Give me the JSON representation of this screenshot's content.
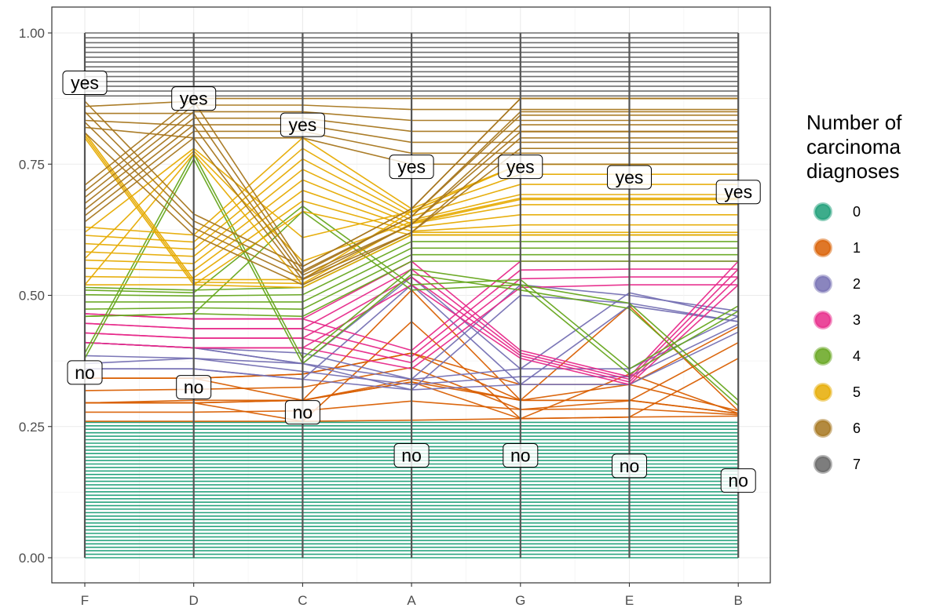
{
  "chart_data": {
    "type": "parallel-coordinates",
    "xlabel": "",
    "ylabel": "",
    "ylim": [
      0,
      1
    ],
    "grid": true,
    "legend_position": "right",
    "axes": [
      "F",
      "D",
      "C",
      "A",
      "G",
      "E",
      "B"
    ],
    "y_ticks": [
      "0.00",
      "0.25",
      "0.50",
      "0.75",
      "1.00"
    ],
    "y_tick_values": [
      0,
      0.25,
      0.5,
      0.75,
      1
    ],
    "legend": {
      "title_lines": [
        "Number of",
        "carcinoma",
        "diagnoses"
      ],
      "items": [
        {
          "label": "0",
          "color": "#1B9E77"
        },
        {
          "label": "1",
          "color": "#D95F02"
        },
        {
          "label": "2",
          "color": "#7570B3"
        },
        {
          "label": "3",
          "color": "#E7298A"
        },
        {
          "label": "4",
          "color": "#66A61E"
        },
        {
          "label": "5",
          "color": "#E6AB02"
        },
        {
          "label": "6",
          "color": "#A6761D"
        },
        {
          "label": "7",
          "color": "#666666"
        }
      ]
    },
    "level_labels": [
      {
        "axis": "F",
        "label": "yes",
        "y": 0.905
      },
      {
        "axis": "F",
        "label": "no",
        "y": 0.353
      },
      {
        "axis": "D",
        "label": "yes",
        "y": 0.875
      },
      {
        "axis": "D",
        "label": "no",
        "y": 0.325
      },
      {
        "axis": "C",
        "label": "yes",
        "y": 0.825
      },
      {
        "axis": "C",
        "label": "no",
        "y": 0.277
      },
      {
        "axis": "A",
        "label": "yes",
        "y": 0.745
      },
      {
        "axis": "A",
        "label": "no",
        "y": 0.195
      },
      {
        "axis": "G",
        "label": "yes",
        "y": 0.745
      },
      {
        "axis": "G",
        "label": "no",
        "y": 0.195
      },
      {
        "axis": "E",
        "label": "yes",
        "y": 0.725
      },
      {
        "axis": "E",
        "label": "no",
        "y": 0.175
      },
      {
        "axis": "B",
        "label": "yes",
        "y": 0.697
      },
      {
        "axis": "B",
        "label": "no",
        "y": 0.147
      }
    ],
    "series": [
      {
        "name": "0",
        "count": 40,
        "profiles": [
          {
            "frac": 1.0,
            "values": [
              [
                0.0,
                0.258
              ],
              [
                0.0,
                0.258
              ],
              [
                0.0,
                0.258
              ],
              [
                0.0,
                0.258
              ],
              [
                0.0,
                0.258
              ],
              [
                0.0,
                0.258
              ],
              [
                0.0,
                0.258
              ]
            ]
          }
        ]
      },
      {
        "name": "1",
        "count": 11,
        "profiles": [
          {
            "frac": 0.3,
            "values": [
              [
                0.26,
                0.295
              ],
              [
                0.26,
                0.295
              ],
              [
                0.26,
                0.3
              ],
              [
                0.262,
                0.335
              ],
              [
                0.265,
                0.3
              ],
              [
                0.268,
                0.3
              ],
              [
                0.27,
                0.275
              ]
            ]
          },
          {
            "frac": 0.2,
            "values": [
              [
                0.295,
                0.342
              ],
              [
                0.295,
                0.342
              ],
              [
                0.3,
                0.35
              ],
              [
                0.34,
                0.39
              ],
              [
                0.3,
                0.33
              ],
              [
                0.3,
                0.33
              ],
              [
                0.275,
                0.28
              ]
            ]
          },
          {
            "frac": 0.2,
            "values": [
              [
                0.295,
                0.342
              ],
              [
                0.295,
                0.342
              ],
              [
                0.26,
                0.3
              ],
              [
                0.45,
                0.51
              ],
              [
                0.265,
                0.3
              ],
              [
                0.35,
                0.48
              ],
              [
                0.275,
                0.28
              ]
            ]
          },
          {
            "frac": 0.3,
            "values": [
              [
                0.295,
                0.342
              ],
              [
                0.3,
                0.342
              ],
              [
                0.3,
                0.35
              ],
              [
                0.335,
                0.39
              ],
              [
                0.265,
                0.3
              ],
              [
                0.268,
                0.33
              ],
              [
                0.38,
                0.44
              ]
            ]
          }
        ]
      },
      {
        "name": "2",
        "count": 7,
        "profiles": [
          {
            "frac": 0.45,
            "values": [
              [
                0.36,
                0.41
              ],
              [
                0.36,
                0.4
              ],
              [
                0.34,
                0.37
              ],
              [
                0.32,
                0.34
              ],
              [
                0.33,
                0.36
              ],
              [
                0.33,
                0.36
              ],
              [
                0.43,
                0.46
              ]
            ]
          },
          {
            "frac": 0.25,
            "values": [
              [
                0.36,
                0.41
              ],
              [
                0.36,
                0.4
              ],
              [
                0.34,
                0.37
              ],
              [
                0.52,
                0.535
              ],
              [
                0.33,
                0.36
              ],
              [
                0.48,
                0.505
              ],
              [
                0.45,
                0.46
              ]
            ]
          },
          {
            "frac": 0.3,
            "values": [
              [
                0.37,
                0.41
              ],
              [
                0.38,
                0.4
              ],
              [
                0.37,
                0.39
              ],
              [
                0.32,
                0.34
              ],
              [
                0.5,
                0.52
              ],
              [
                0.485,
                0.5
              ],
              [
                0.45,
                0.47
              ]
            ]
          }
        ]
      },
      {
        "name": "3",
        "count": 7,
        "profiles": [
          {
            "frac": 0.5,
            "values": [
              [
                0.41,
                0.465
              ],
              [
                0.4,
                0.455
              ],
              [
                0.4,
                0.455
              ],
              [
                0.36,
                0.395
              ],
              [
                0.515,
                0.565
              ],
              [
                0.52,
                0.565
              ],
              [
                0.52,
                0.565
              ]
            ]
          },
          {
            "frac": 0.5,
            "values": [
              [
                0.41,
                0.465
              ],
              [
                0.4,
                0.455
              ],
              [
                0.4,
                0.455
              ],
              [
                0.52,
                0.565
              ],
              [
                0.38,
                0.395
              ],
              [
                0.33,
                0.345
              ],
              [
                0.52,
                0.565
              ]
            ]
          }
        ]
      },
      {
        "name": "4",
        "count": 9,
        "profiles": [
          {
            "frac": 0.6,
            "values": [
              [
                0.46,
                0.515
              ],
              [
                0.465,
                0.51
              ],
              [
                0.46,
                0.515
              ],
              [
                0.565,
                0.615
              ],
              [
                0.565,
                0.615
              ],
              [
                0.565,
                0.615
              ],
              [
                0.565,
                0.615
              ]
            ]
          },
          {
            "frac": 0.15,
            "values": [
              [
                0.38,
                0.39
              ],
              [
                0.76,
                0.77
              ],
              [
                0.37,
                0.38
              ],
              [
                0.54,
                0.55
              ],
              [
                0.51,
                0.52
              ],
              [
                0.475,
                0.485
              ],
              [
                0.29,
                0.3
              ]
            ]
          },
          {
            "frac": 0.25,
            "values": [
              [
                0.46,
                0.51
              ],
              [
                0.465,
                0.505
              ],
              [
                0.66,
                0.67
              ],
              [
                0.51,
                0.52
              ],
              [
                0.52,
                0.53
              ],
              [
                0.35,
                0.36
              ],
              [
                0.47,
                0.48
              ]
            ]
          }
        ]
      },
      {
        "name": "5",
        "count": 14,
        "profiles": [
          {
            "frac": 0.6,
            "values": [
              [
                0.52,
                0.63
              ],
              [
                0.52,
                0.615
              ],
              [
                0.66,
                0.8
              ],
              [
                0.615,
                0.665
              ],
              [
                0.615,
                0.75
              ],
              [
                0.615,
                0.75
              ],
              [
                0.615,
                0.75
              ]
            ]
          },
          {
            "frac": 0.2,
            "values": [
              [
                0.52,
                0.62
              ],
              [
                0.77,
                0.78
              ],
              [
                0.52,
                0.61
              ],
              [
                0.62,
                0.66
              ],
              [
                0.62,
                0.75
              ],
              [
                0.62,
                0.75
              ],
              [
                0.62,
                0.75
              ]
            ]
          },
          {
            "frac": 0.2,
            "values": [
              [
                0.8,
                0.81
              ],
              [
                0.52,
                0.53
              ],
              [
                0.515,
                0.53
              ],
              [
                0.615,
                0.66
              ],
              [
                0.615,
                0.75
              ],
              [
                0.615,
                0.75
              ],
              [
                0.615,
                0.75
              ]
            ]
          }
        ]
      },
      {
        "name": "6",
        "count": 14,
        "profiles": [
          {
            "frac": 0.5,
            "values": [
              [
                0.64,
                0.71
              ],
              [
                0.8,
                0.875
              ],
              [
                0.8,
                0.875
              ],
              [
                0.75,
                0.875
              ],
              [
                0.75,
                0.875
              ],
              [
                0.75,
                0.875
              ],
              [
                0.75,
                0.875
              ]
            ]
          },
          {
            "frac": 0.25,
            "values": [
              [
                0.81,
                0.87
              ],
              [
                0.615,
                0.655
              ],
              [
                0.52,
                0.555
              ],
              [
                0.62,
                0.665
              ],
              [
                0.8,
                0.875
              ],
              [
                0.8,
                0.875
              ],
              [
                0.8,
                0.875
              ]
            ]
          },
          {
            "frac": 0.25,
            "values": [
              [
                0.82,
                0.86
              ],
              [
                0.8,
                0.87
              ],
              [
                0.53,
                0.555
              ],
              [
                0.62,
                0.665
              ],
              [
                0.78,
                0.875
              ],
              [
                0.78,
                0.875
              ],
              [
                0.78,
                0.875
              ]
            ]
          }
        ]
      },
      {
        "name": "7",
        "count": 14,
        "profiles": [
          {
            "frac": 1.0,
            "values": [
              [
                0.88,
                1.0
              ],
              [
                0.88,
                1.0
              ],
              [
                0.88,
                1.0
              ],
              [
                0.88,
                1.0
              ],
              [
                0.88,
                1.0
              ],
              [
                0.88,
                1.0
              ],
              [
                0.88,
                1.0
              ]
            ]
          }
        ]
      }
    ]
  }
}
